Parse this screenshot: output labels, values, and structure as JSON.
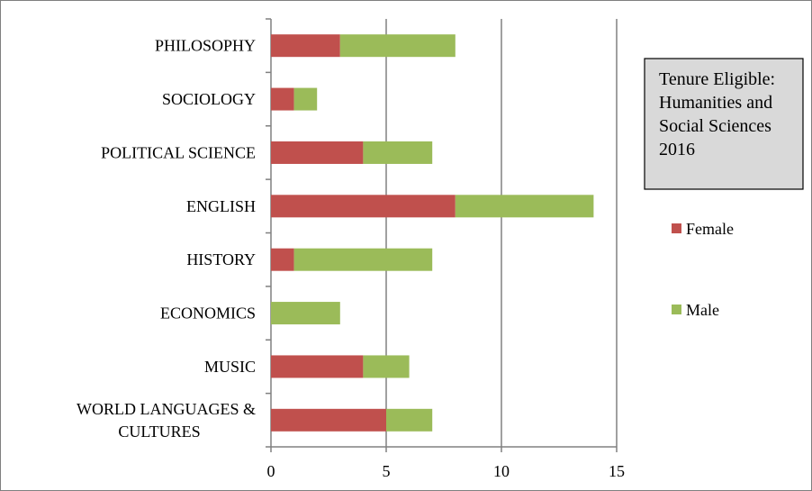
{
  "chart_data": {
    "type": "bar",
    "orientation": "horizontal",
    "stacked": true,
    "title": "Tenure Eligible: Humanities and Social Sciences 2016",
    "title_lines": [
      "Tenure Eligible:",
      "Humanities and",
      "Social Sciences",
      "2016"
    ],
    "categories": [
      "PHILOSOPHY",
      "SOCIOLOGY",
      "POLITICAL SCIENCE",
      "ENGLISH",
      "HISTORY",
      "ECONOMICS",
      "MUSIC",
      "WORLD LANGUAGES & CULTURES"
    ],
    "category_label_lines": [
      [
        "PHILOSOPHY"
      ],
      [
        "SOCIOLOGY"
      ],
      [
        "POLITICAL SCIENCE"
      ],
      [
        "ENGLISH"
      ],
      [
        "HISTORY"
      ],
      [
        "ECONOMICS"
      ],
      [
        "MUSIC"
      ],
      [
        "WORLD LANGUAGES &",
        "CULTURES"
      ]
    ],
    "series": [
      {
        "name": "Female",
        "color": "#c0504d",
        "values": [
          3,
          1,
          4,
          8,
          1,
          0,
          4,
          5
        ]
      },
      {
        "name": "Male",
        "color": "#9bbb59",
        "values": [
          5,
          1,
          3,
          6,
          6,
          3,
          2,
          2
        ]
      }
    ],
    "xlim": [
      0,
      15
    ],
    "xticks": [
      0,
      5,
      10,
      15
    ],
    "xlabel": "",
    "ylabel": "",
    "grid": "vertical",
    "legend_position": "right"
  }
}
